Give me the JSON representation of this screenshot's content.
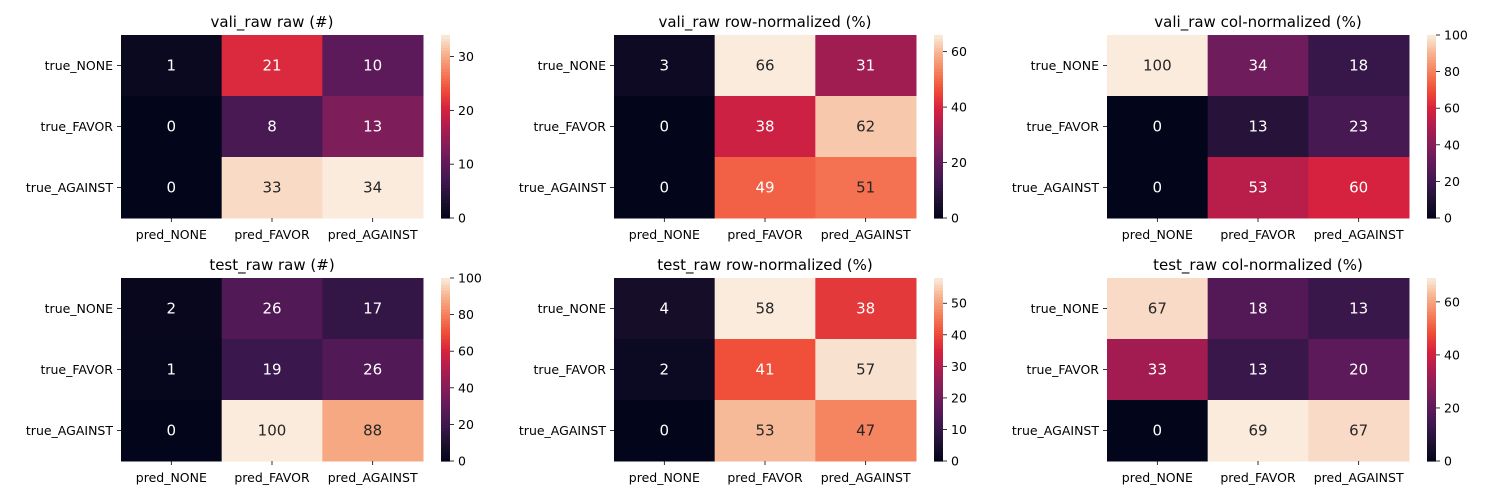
{
  "chart_data": [
    {
      "type": "heatmap",
      "title": "vali_raw raw (#)",
      "row_labels": [
        "true_NONE",
        "true_FAVOR",
        "true_AGAINST"
      ],
      "col_labels": [
        "pred_NONE",
        "pred_FAVOR",
        "pred_AGAINST"
      ],
      "values": [
        [
          1,
          21,
          10
        ],
        [
          0,
          8,
          13
        ],
        [
          0,
          33,
          34
        ]
      ],
      "colorbar": {
        "range": [
          0,
          34
        ],
        "ticks": [
          0,
          10,
          20,
          30
        ]
      },
      "colormap": "rocket"
    },
    {
      "type": "heatmap",
      "title": "vali_raw row-normalized (%)",
      "row_labels": [
        "true_NONE",
        "true_FAVOR",
        "true_AGAINST"
      ],
      "col_labels": [
        "pred_NONE",
        "pred_FAVOR",
        "pred_AGAINST"
      ],
      "values": [
        [
          3,
          66,
          31
        ],
        [
          0,
          38,
          62
        ],
        [
          0,
          49,
          51
        ]
      ],
      "colorbar": {
        "range": [
          0,
          66
        ],
        "ticks": [
          0,
          20,
          40,
          60
        ]
      },
      "colormap": "rocket"
    },
    {
      "type": "heatmap",
      "title": "vali_raw col-normalized (%)",
      "row_labels": [
        "true_NONE",
        "true_FAVOR",
        "true_AGAINST"
      ],
      "col_labels": [
        "pred_NONE",
        "pred_FAVOR",
        "pred_AGAINST"
      ],
      "values": [
        [
          100,
          34,
          18
        ],
        [
          0,
          13,
          23
        ],
        [
          0,
          53,
          60
        ]
      ],
      "colorbar": {
        "range": [
          0,
          100
        ],
        "ticks": [
          0,
          20,
          40,
          60,
          80,
          100
        ]
      },
      "colormap": "rocket"
    },
    {
      "type": "heatmap",
      "title": "test_raw raw (#)",
      "row_labels": [
        "true_NONE",
        "true_FAVOR",
        "true_AGAINST"
      ],
      "col_labels": [
        "pred_NONE",
        "pred_FAVOR",
        "pred_AGAINST"
      ],
      "values": [
        [
          2,
          26,
          17
        ],
        [
          1,
          19,
          26
        ],
        [
          0,
          100,
          88
        ]
      ],
      "colorbar": {
        "range": [
          0,
          100
        ],
        "ticks": [
          0,
          20,
          40,
          60,
          80,
          100
        ]
      },
      "colormap": "rocket"
    },
    {
      "type": "heatmap",
      "title": "test_raw row-normalized (%)",
      "row_labels": [
        "true_NONE",
        "true_FAVOR",
        "true_AGAINST"
      ],
      "col_labels": [
        "pred_NONE",
        "pred_FAVOR",
        "pred_AGAINST"
      ],
      "values": [
        [
          4,
          58,
          38
        ],
        [
          2,
          41,
          57
        ],
        [
          0,
          53,
          47
        ]
      ],
      "colorbar": {
        "range": [
          0,
          58
        ],
        "ticks": [
          0,
          10,
          20,
          30,
          40,
          50
        ]
      },
      "colormap": "rocket"
    },
    {
      "type": "heatmap",
      "title": "test_raw col-normalized (%)",
      "row_labels": [
        "true_NONE",
        "true_FAVOR",
        "true_AGAINST"
      ],
      "col_labels": [
        "pred_NONE",
        "pred_FAVOR",
        "pred_AGAINST"
      ],
      "values": [
        [
          67,
          18,
          13
        ],
        [
          33,
          13,
          20
        ],
        [
          0,
          69,
          67
        ]
      ],
      "colorbar": {
        "range": [
          0,
          69
        ],
        "ticks": [
          0,
          20,
          40,
          60
        ]
      },
      "colormap": "rocket"
    }
  ]
}
